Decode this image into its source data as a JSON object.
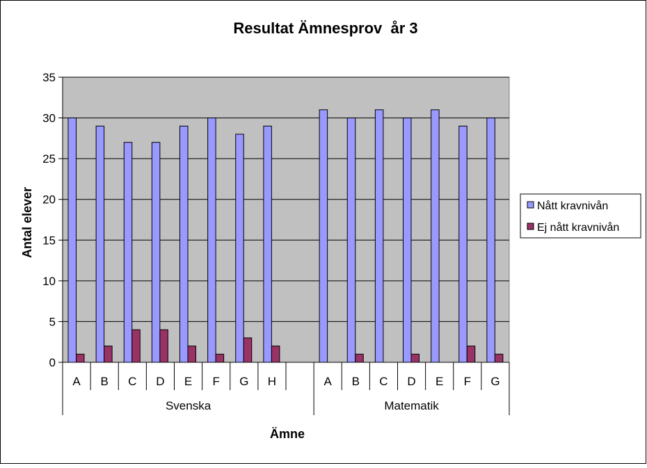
{
  "chart_data": {
    "type": "bar",
    "title": "Resultat Ämnesprov  år 3",
    "xlabel": "Ämne",
    "ylabel": "Antal elever",
    "ylim": [
      0,
      35
    ],
    "yticks": [
      0,
      5,
      10,
      15,
      20,
      25,
      30,
      35
    ],
    "grid": true,
    "legend_position": "right",
    "groups": [
      {
        "name": "Svenska",
        "categories": [
          "A",
          "B",
          "C",
          "D",
          "E",
          "F",
          "G",
          "H"
        ]
      },
      {
        "name": "Matematik",
        "categories": [
          "A",
          "B",
          "C",
          "D",
          "E",
          "F",
          "G"
        ]
      }
    ],
    "series": [
      {
        "name": "Nått kravnivån",
        "color": "#9999ff",
        "values": [
          30,
          29,
          27,
          27,
          29,
          30,
          28,
          29,
          null,
          31,
          30,
          31,
          30,
          31,
          29,
          30
        ]
      },
      {
        "name": "Ej nått kravnivån",
        "color": "#993366",
        "values": [
          1,
          2,
          4,
          4,
          2,
          1,
          3,
          2,
          null,
          0,
          1,
          0,
          1,
          0,
          2,
          1
        ]
      }
    ],
    "plot_background": "#c0c0c0"
  }
}
